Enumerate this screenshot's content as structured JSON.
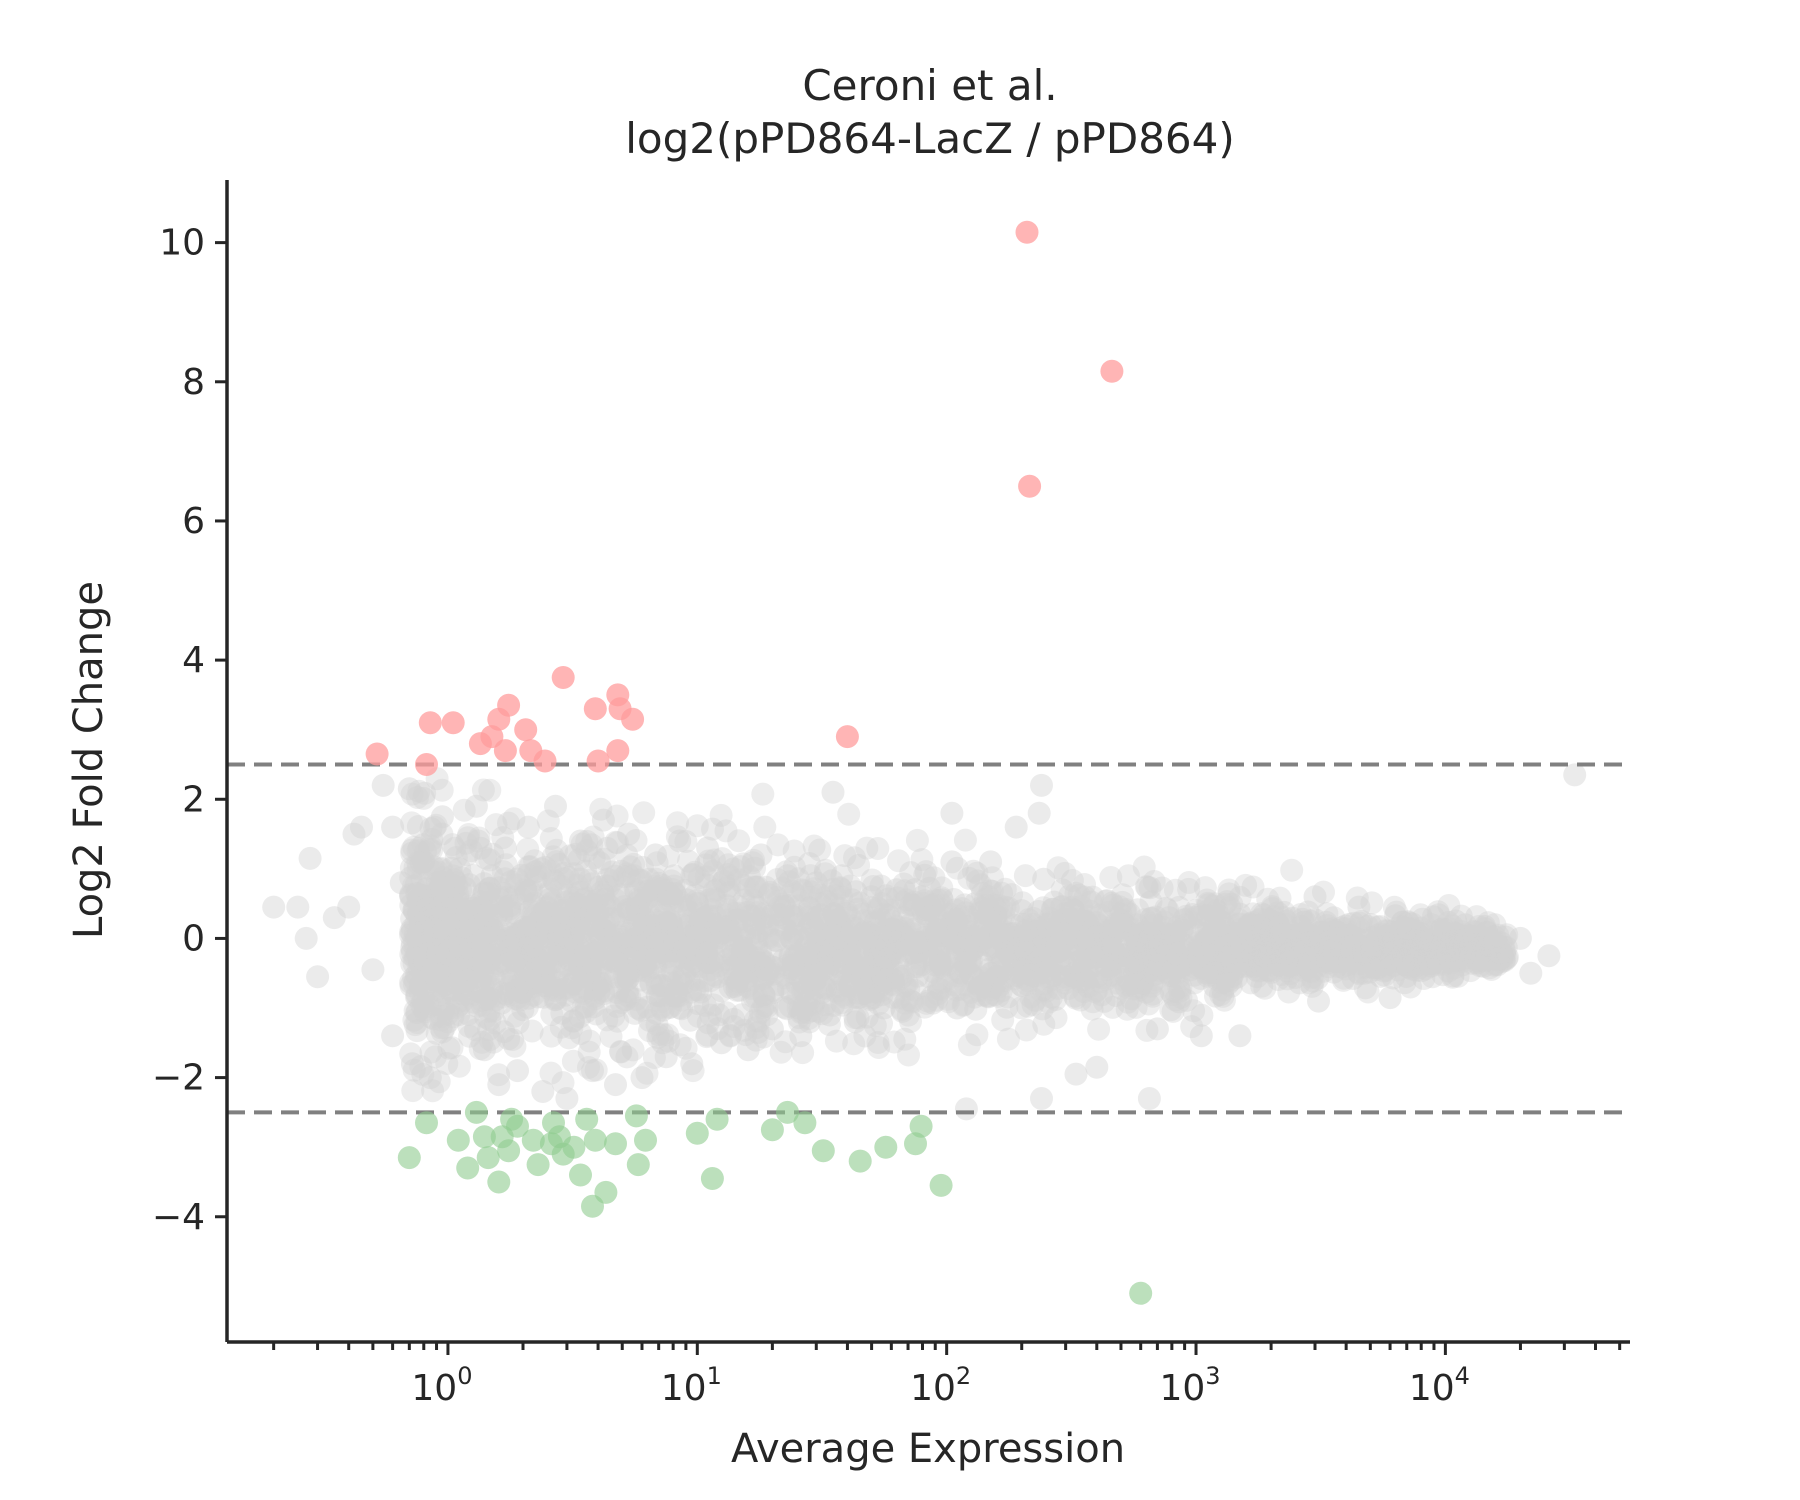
{
  "chart_data": {
    "type": "scatter",
    "title": [
      "Ceroni et al.",
      "log2(pPD864-LacZ / pPD864)"
    ],
    "xlabel": "Average Expression",
    "ylabel": "Log2 Fold Change",
    "xscale": "log",
    "xlim": [
      0.13,
      55000
    ],
    "ylim": [
      -5.8,
      10.9
    ],
    "xticks": [
      {
        "base": "10",
        "exp": "0"
      },
      {
        "base": "10",
        "exp": "1"
      },
      {
        "base": "10",
        "exp": "2"
      },
      {
        "base": "10",
        "exp": "3"
      },
      {
        "base": "10",
        "exp": "4"
      }
    ],
    "yticks": [
      {
        "value": -4,
        "label": "−4"
      },
      {
        "value": -2,
        "label": "−2"
      },
      {
        "value": 0,
        "label": "0"
      },
      {
        "value": 2,
        "label": "2"
      },
      {
        "value": 4,
        "label": "4"
      },
      {
        "value": 6,
        "label": "6"
      },
      {
        "value": 8,
        "label": "8"
      },
      {
        "value": 10,
        "label": "10"
      }
    ],
    "thresholds": [
      2.5,
      -2.5
    ],
    "colors": {
      "up": "#ff9c9c",
      "down": "#8fcc8f",
      "ns": "#d3d3d3",
      "threshold": "#808080"
    },
    "up_points": [
      [
        210,
        10.15
      ],
      [
        460,
        8.15
      ],
      [
        215,
        6.5
      ],
      [
        40,
        2.9
      ],
      [
        2.9,
        3.75
      ],
      [
        4.8,
        3.5
      ],
      [
        3.9,
        3.3
      ],
      [
        4.9,
        3.3
      ],
      [
        5.5,
        3.15
      ],
      [
        1.75,
        3.35
      ],
      [
        1.6,
        3.15
      ],
      [
        0.85,
        3.1
      ],
      [
        1.05,
        3.1
      ],
      [
        2.05,
        3.0
      ],
      [
        1.5,
        2.9
      ],
      [
        1.35,
        2.8
      ],
      [
        1.7,
        2.7
      ],
      [
        2.15,
        2.7
      ],
      [
        4.8,
        2.7
      ],
      [
        0.52,
        2.65
      ],
      [
        2.45,
        2.55
      ],
      [
        4.0,
        2.55
      ],
      [
        0.82,
        2.5
      ]
    ],
    "down_points": [
      [
        600,
        -5.1
      ],
      [
        3.8,
        -3.85
      ],
      [
        4.3,
        -3.65
      ],
      [
        95,
        -3.55
      ],
      [
        11.5,
        -3.45
      ],
      [
        1.6,
        -3.5
      ],
      [
        3.4,
        -3.4
      ],
      [
        1.2,
        -3.3
      ],
      [
        2.3,
        -3.25
      ],
      [
        5.8,
        -3.25
      ],
      [
        0.7,
        -3.15
      ],
      [
        1.45,
        -3.15
      ],
      [
        2.9,
        -3.1
      ],
      [
        1.75,
        -3.05
      ],
      [
        32,
        -3.05
      ],
      [
        45,
        -3.2
      ],
      [
        57,
        -3.0
      ],
      [
        75,
        -2.95
      ],
      [
        4.7,
        -2.95
      ],
      [
        3.2,
        -3.0
      ],
      [
        2.6,
        -2.95
      ],
      [
        3.9,
        -2.9
      ],
      [
        6.2,
        -2.9
      ],
      [
        1.1,
        -2.9
      ],
      [
        2.2,
        -2.9
      ],
      [
        1.4,
        -2.85
      ],
      [
        1.65,
        -2.85
      ],
      [
        2.8,
        -2.85
      ],
      [
        10,
        -2.8
      ],
      [
        20,
        -2.75
      ],
      [
        79,
        -2.7
      ],
      [
        1.9,
        -2.7
      ],
      [
        27,
        -2.65
      ],
      [
        0.82,
        -2.65
      ],
      [
        2.65,
        -2.65
      ],
      [
        1.8,
        -2.6
      ],
      [
        3.6,
        -2.6
      ],
      [
        12,
        -2.6
      ],
      [
        5.7,
        -2.55
      ],
      [
        1.3,
        -2.5
      ],
      [
        23,
        -2.5
      ]
    ],
    "ns_points": [
      [
        33000,
        2.35
      ],
      [
        240,
        2.2
      ],
      [
        35,
        2.1
      ],
      [
        235,
        1.8
      ],
      [
        105,
        1.8
      ],
      [
        190,
        1.6
      ],
      [
        105,
        1.1
      ],
      [
        150,
        1.1
      ],
      [
        245,
        0.85
      ],
      [
        330,
        0.65
      ],
      [
        1500,
        0.35
      ],
      [
        3000,
        0.6
      ],
      [
        4500,
        0.45
      ],
      [
        8000,
        0.15
      ],
      [
        13000,
        0.1
      ],
      [
        20000,
        0.0
      ],
      [
        26000,
        -0.25
      ],
      [
        22000,
        -0.5
      ],
      [
        6000,
        -0.85
      ],
      [
        3100,
        -0.9
      ],
      [
        1500,
        -1.4
      ],
      [
        1050,
        -1.4
      ],
      [
        700,
        -1.3
      ],
      [
        400,
        -1.85
      ],
      [
        330,
        -1.95
      ],
      [
        240,
        -2.3
      ],
      [
        650,
        -2.3
      ],
      [
        120,
        -2.45
      ],
      [
        0.2,
        0.45
      ],
      [
        0.25,
        0.45
      ],
      [
        0.28,
        1.15
      ],
      [
        0.27,
        0.0
      ],
      [
        0.3,
        -0.55
      ],
      [
        0.35,
        0.3
      ],
      [
        0.4,
        0.45
      ],
      [
        0.42,
        1.5
      ],
      [
        0.45,
        1.6
      ],
      [
        0.5,
        -0.45
      ],
      [
        0.55,
        2.2
      ],
      [
        0.6,
        1.6
      ],
      [
        0.6,
        -1.4
      ],
      [
        0.65,
        0.8
      ],
      [
        0.7,
        2.15
      ],
      [
        0.72,
        -1.8
      ],
      [
        0.8,
        1.1
      ],
      [
        0.85,
        -2.0
      ],
      [
        0.9,
        0.6
      ],
      [
        0.95,
        1.75
      ],
      [
        1.0,
        -1.2
      ],
      [
        1.1,
        0.2
      ],
      [
        1.2,
        -0.8
      ],
      [
        1.3,
        1.9
      ],
      [
        1.4,
        -1.6
      ],
      [
        1.5,
        0.9
      ],
      [
        1.6,
        -2.1
      ],
      [
        1.7,
        1.3
      ],
      [
        1.9,
        -1.9
      ],
      [
        2.1,
        1.6
      ],
      [
        2.4,
        -2.2
      ],
      [
        2.7,
        1.9
      ],
      [
        3.0,
        -2.3
      ],
      [
        3.4,
        1.4
      ],
      [
        3.8,
        -1.9
      ],
      [
        4.2,
        1.7
      ],
      [
        4.7,
        -2.1
      ],
      [
        5.3,
        1.5
      ],
      [
        6.0,
        -2.0
      ],
      [
        6.8,
        1.2
      ],
      [
        7.5,
        -1.7
      ],
      [
        8.5,
        1.4
      ],
      [
        9.5,
        -1.8
      ],
      [
        11,
        1.3
      ],
      [
        12.5,
        -1.5
      ],
      [
        14,
        1.0
      ],
      [
        16,
        -1.6
      ],
      [
        18,
        1.2
      ],
      [
        20,
        -1.3
      ],
      [
        23,
        0.9
      ],
      [
        26,
        -1.4
      ],
      [
        30,
        0.8
      ],
      [
        34,
        -1.1
      ],
      [
        38,
        0.9
      ],
      [
        43,
        -1.2
      ],
      [
        50,
        0.6
      ],
      [
        56,
        -1.0
      ],
      [
        63,
        0.7
      ],
      [
        72,
        -0.9
      ],
      [
        80,
        0.6
      ],
      [
        92,
        -0.8
      ],
      [
        110,
        -1.0
      ],
      [
        130,
        0.5
      ],
      [
        160,
        -0.7
      ],
      [
        200,
        0.4
      ],
      [
        260,
        -0.6
      ],
      [
        320,
        0.45
      ],
      [
        400,
        -0.55
      ],
      [
        500,
        0.35
      ],
      [
        620,
        -0.5
      ],
      [
        780,
        0.3
      ],
      [
        950,
        -0.45
      ],
      [
        1200,
        0.3
      ],
      [
        1700,
        -0.4
      ],
      [
        2300,
        0.25
      ],
      [
        3600,
        -0.3
      ],
      [
        5000,
        0.2
      ],
      [
        7000,
        -0.2
      ],
      [
        10000,
        0.12
      ],
      [
        15000,
        -0.12
      ],
      [
        11000,
        0.25
      ],
      [
        9000,
        -0.3
      ]
    ]
  }
}
